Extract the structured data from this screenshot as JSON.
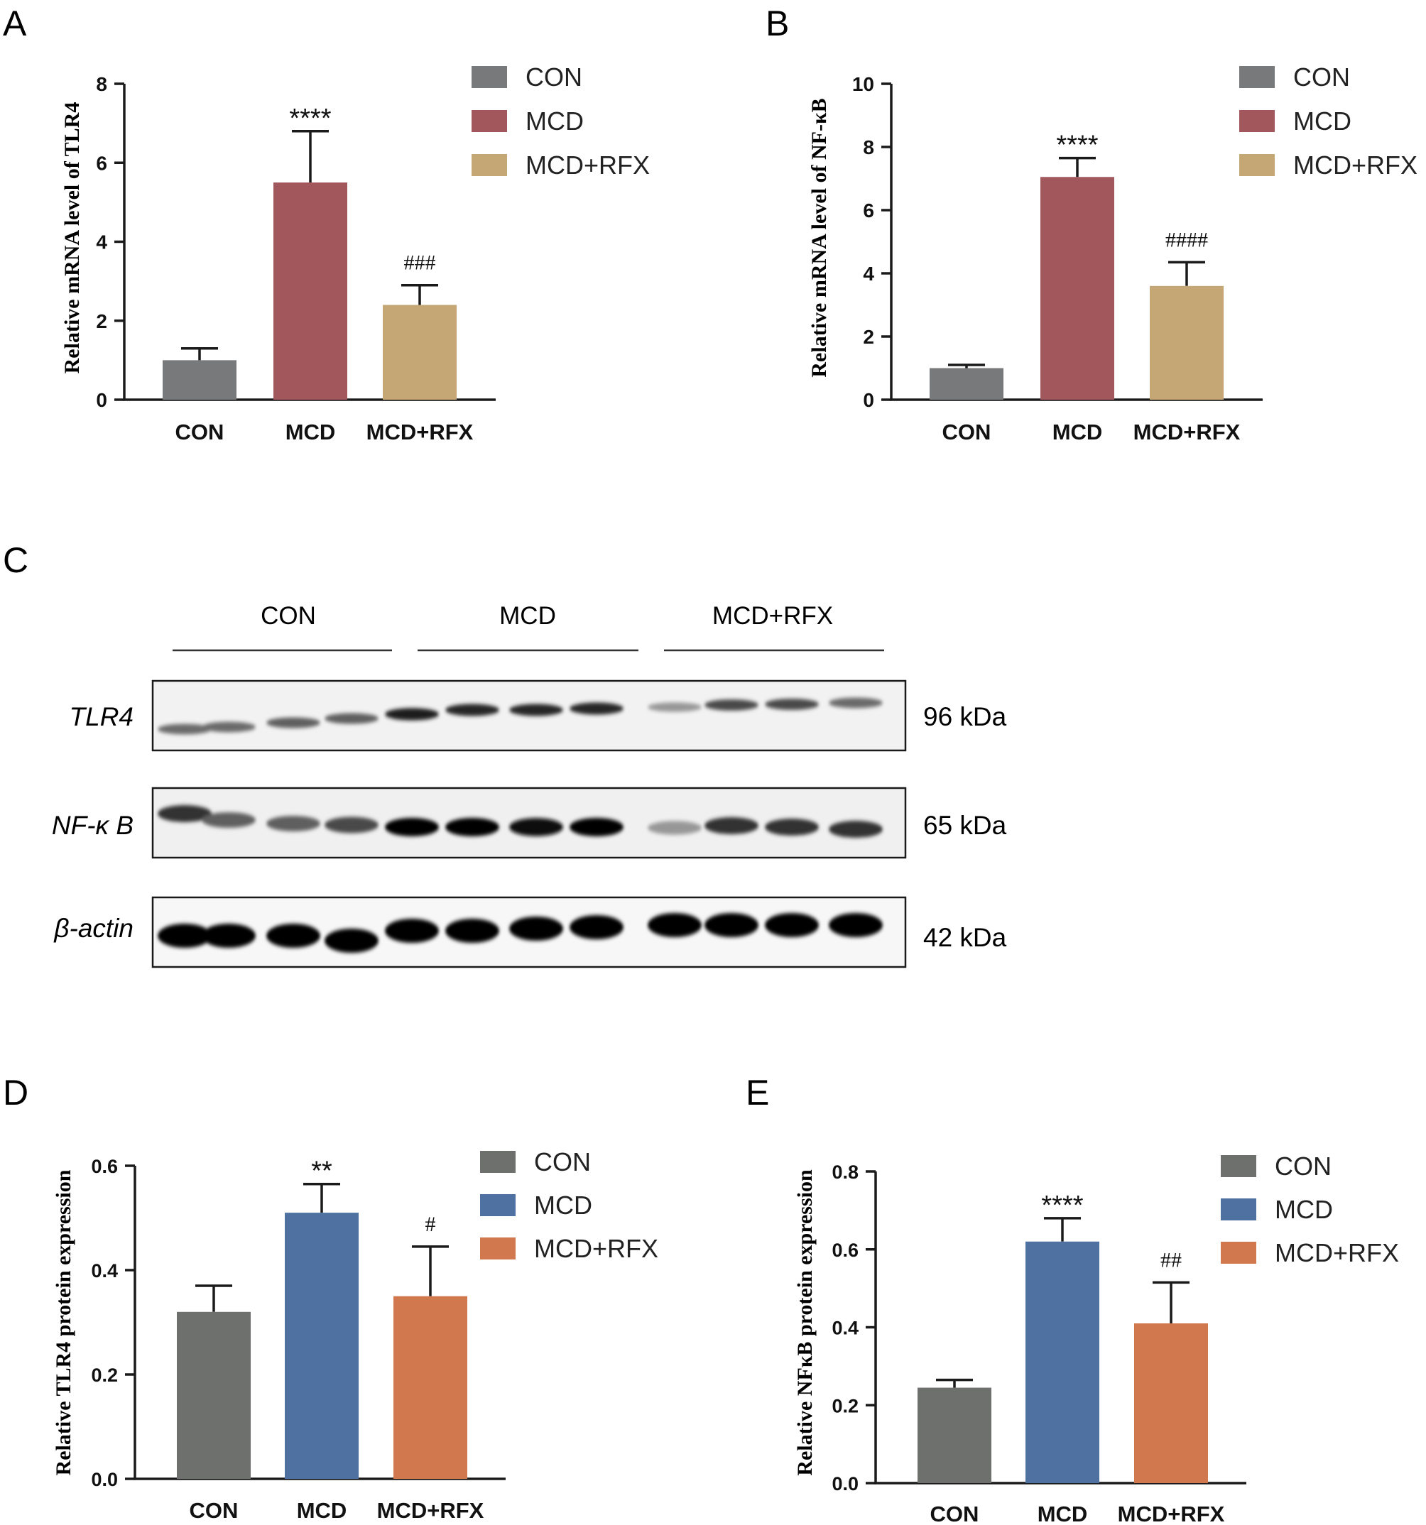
{
  "panel_letters": {
    "a": "A",
    "b": "B",
    "c": "C",
    "d": "D",
    "e": "E"
  },
  "colors": {
    "con": "#78797b",
    "mcd_red": "#a1575c",
    "rfx_tan": "#c5a776",
    "con_dark": "#6d706d",
    "mcd_blue": "#4e71a2",
    "rfx_orange": "#d2784f"
  },
  "chart_data": [
    {
      "id": "A",
      "type": "bar",
      "categories": [
        "CON",
        "MCD",
        "MCD+RFX"
      ],
      "values": [
        1.0,
        5.5,
        2.4
      ],
      "errors": [
        0.3,
        1.3,
        0.5
      ],
      "annotations": [
        "",
        "****",
        "###"
      ],
      "ylabel": "Relative mRNA level of TLR4",
      "ylim": [
        0,
        8
      ],
      "yticks": [
        "0",
        "2",
        "4",
        "6",
        "8"
      ],
      "legend": [
        "CON",
        "MCD",
        "MCD+RFX"
      ],
      "legend_position": "top-right"
    },
    {
      "id": "B",
      "type": "bar",
      "categories": [
        "CON",
        "MCD",
        "MCD+RFX"
      ],
      "values": [
        1.0,
        7.05,
        3.6
      ],
      "errors": [
        0.1,
        0.6,
        0.75
      ],
      "annotations": [
        "",
        "****",
        "####"
      ],
      "ylabel": "Relative mRNA level of NF-κB",
      "ylim": [
        0,
        10
      ],
      "yticks": [
        "0",
        "2",
        "4",
        "6",
        "8",
        "10"
      ],
      "legend": [
        "CON",
        "MCD",
        "MCD+RFX"
      ],
      "legend_position": "top-right"
    },
    {
      "id": "D",
      "type": "bar",
      "categories": [
        "CON",
        "MCD",
        "MCD+RFX"
      ],
      "values": [
        0.32,
        0.51,
        0.35
      ],
      "errors": [
        0.05,
        0.055,
        0.095
      ],
      "annotations": [
        "",
        "**",
        "#"
      ],
      "ylabel": "Relative TLR4  protein expression",
      "ylim": [
        0,
        0.6
      ],
      "yticks": [
        "0.0",
        "0.2",
        "0.4",
        "0.6"
      ],
      "legend": [
        "CON",
        "MCD",
        "MCD+RFX"
      ],
      "legend_position": "top-right"
    },
    {
      "id": "E",
      "type": "bar",
      "categories": [
        "CON",
        "MCD",
        "MCD+RFX"
      ],
      "values": [
        0.245,
        0.62,
        0.41
      ],
      "errors": [
        0.02,
        0.06,
        0.105
      ],
      "annotations": [
        "",
        "****",
        "##"
      ],
      "ylabel": "Relative NFκB protein expression",
      "ylim": [
        0,
        0.8
      ],
      "yticks": [
        "0.0",
        "0.2",
        "0.4",
        "0.6",
        "0.8"
      ],
      "legend": [
        "CON",
        "MCD",
        "MCD+RFX"
      ],
      "legend_position": "top-right"
    }
  ],
  "blot": {
    "groups": [
      "CON",
      "MCD",
      "MCD+RFX"
    ],
    "rows": [
      {
        "protein": "TLR4",
        "mw": "96 kDa",
        "intensities": [
          0.55,
          0.55,
          0.6,
          0.6,
          0.9,
          0.85,
          0.85,
          0.85,
          0.35,
          0.7,
          0.7,
          0.55
        ]
      },
      {
        "protein": "NF-κ B",
        "mw": "65 kDa",
        "intensities": [
          0.8,
          0.6,
          0.6,
          0.7,
          1.0,
          1.0,
          0.95,
          1.0,
          0.35,
          0.8,
          0.8,
          0.8
        ]
      },
      {
        "protein": "β-actin",
        "mw": "42 kDa",
        "intensities": [
          1,
          1,
          1,
          1,
          1,
          1,
          1,
          1,
          1,
          1,
          1,
          1
        ]
      }
    ]
  }
}
